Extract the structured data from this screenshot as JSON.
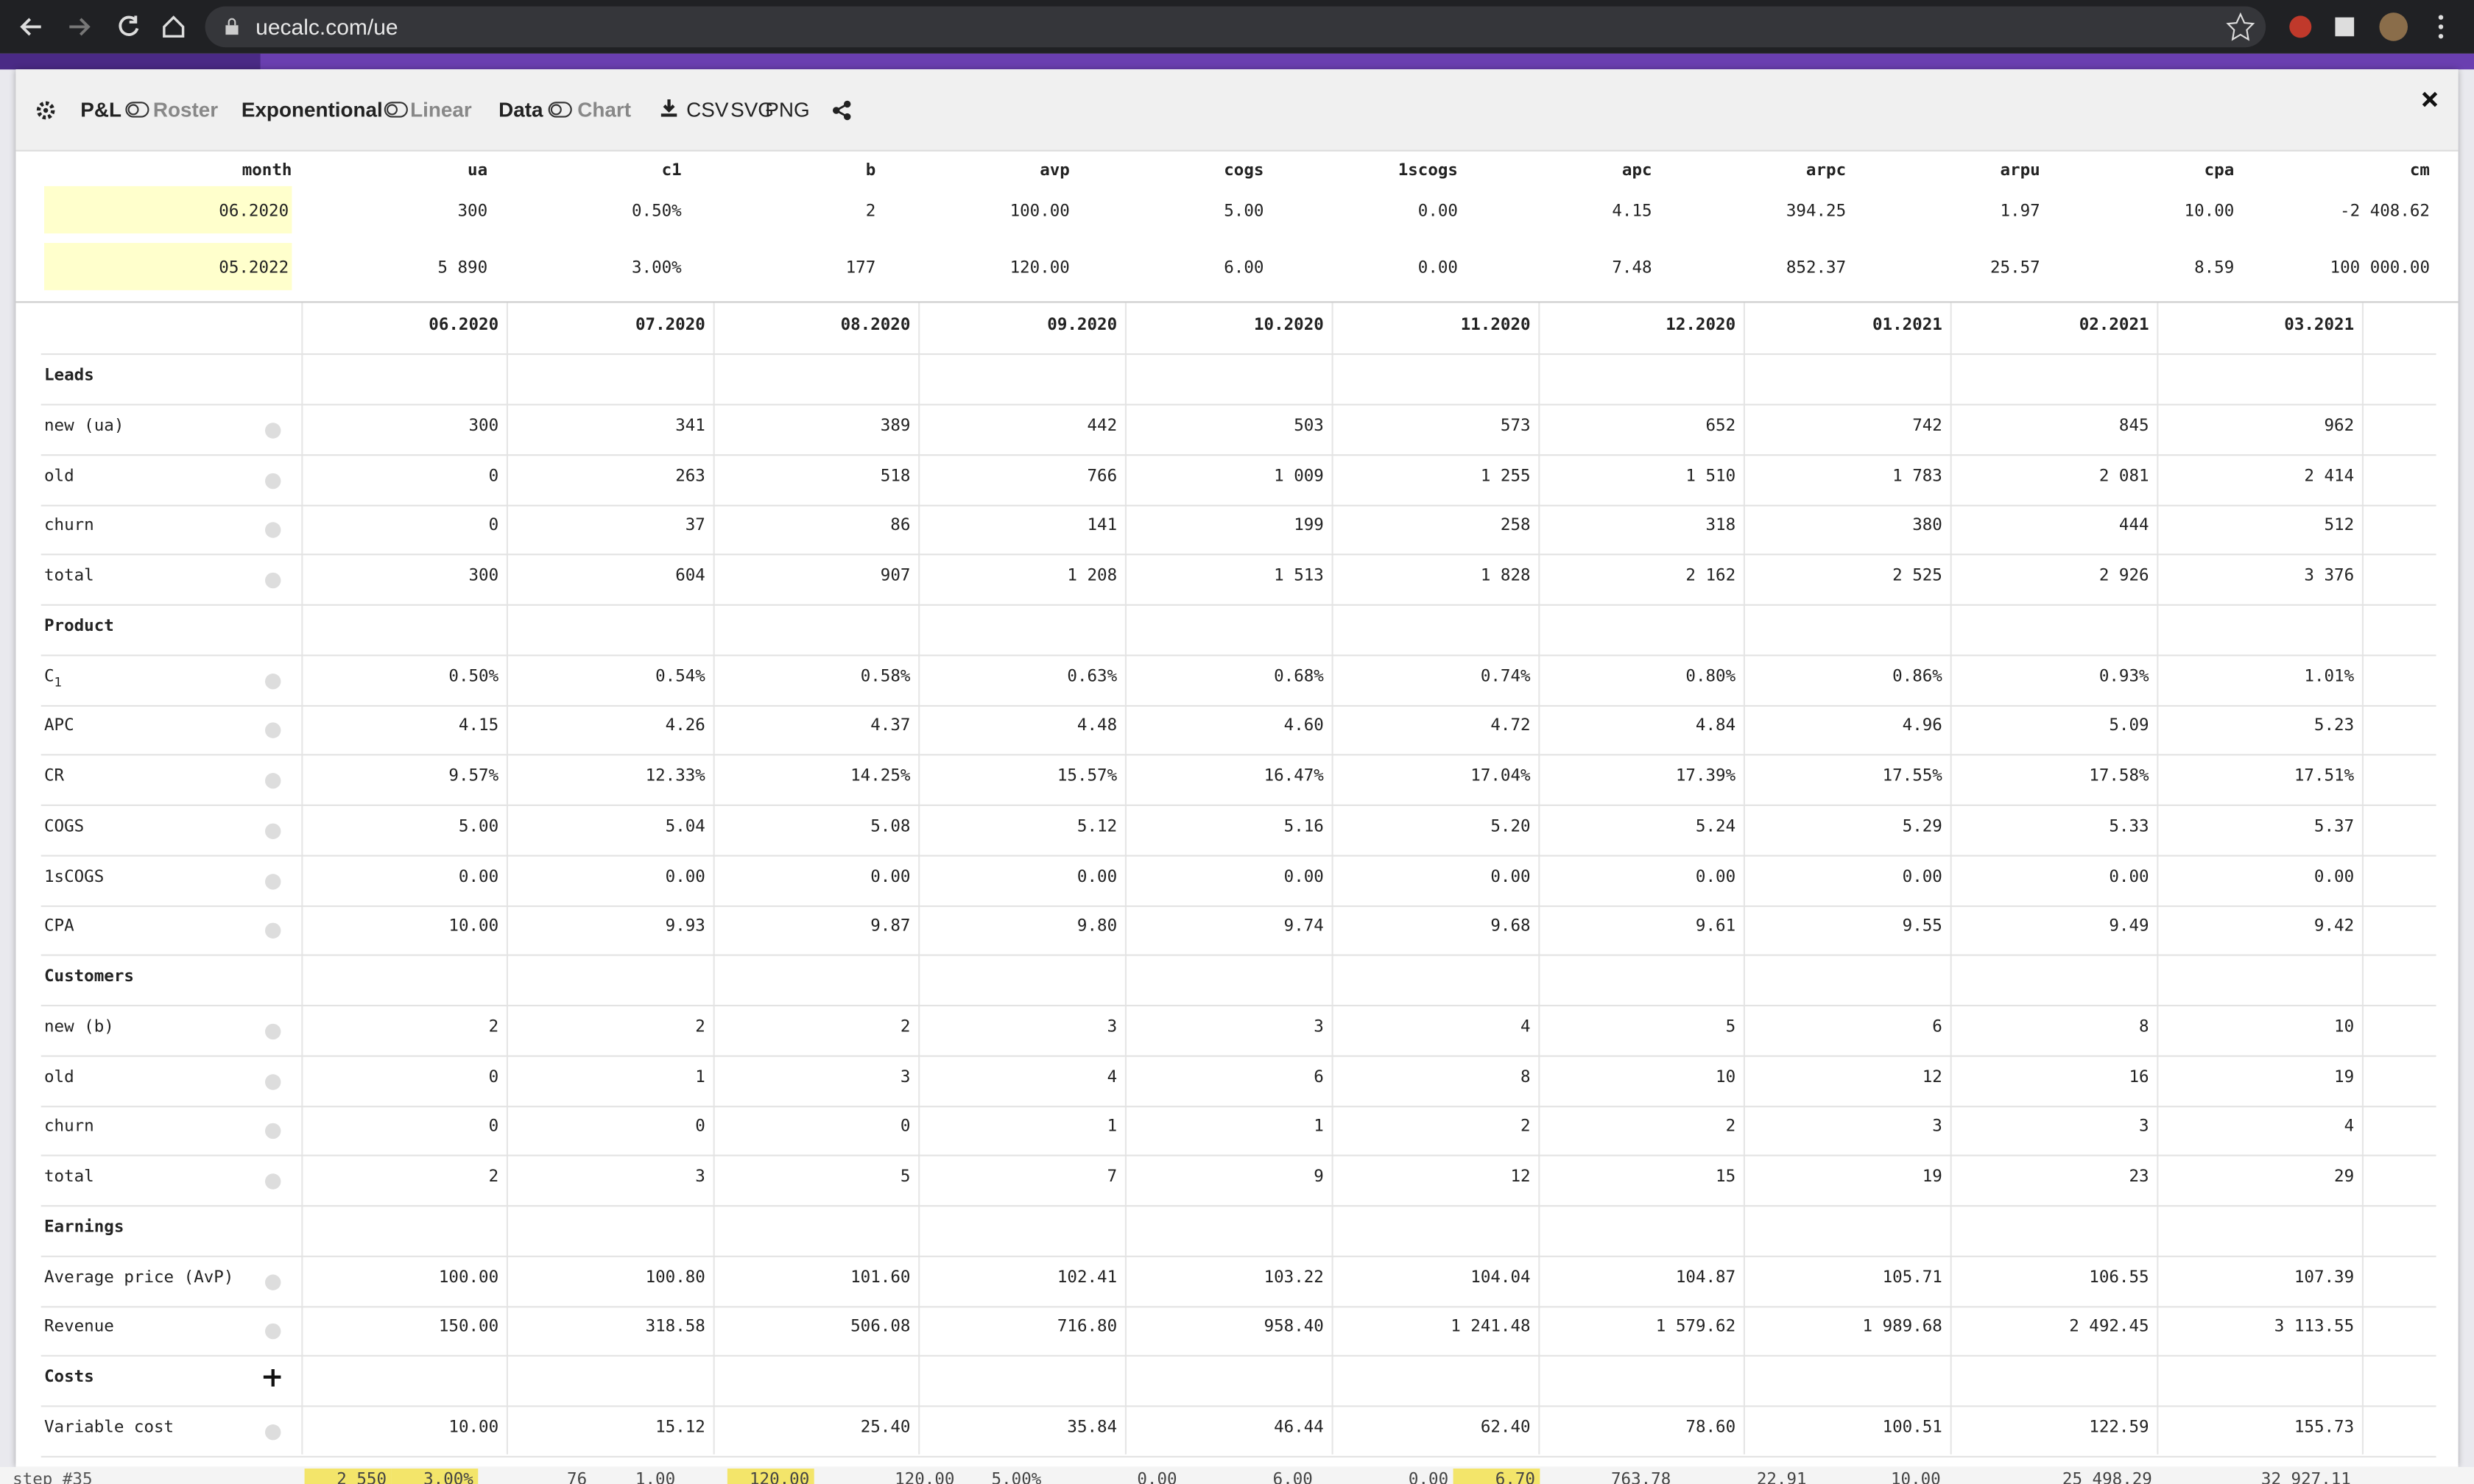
{
  "browser": {
    "url": "uecalc.com/ue"
  },
  "toolbar": {
    "pl": "P&L",
    "roster": "Roster",
    "exponential": "Exponentional",
    "linear": "Linear",
    "data": "Data",
    "chart": "Chart",
    "csv": "CSV",
    "svg": "SVG",
    "png": "PNG"
  },
  "summary": {
    "headers": [
      "month",
      "ua",
      "c1",
      "b",
      "avp",
      "cogs",
      "1scogs",
      "apc",
      "arpc",
      "arpu",
      "cpa",
      "cm"
    ],
    "rows": [
      [
        "06.2020",
        "300",
        "0.50%",
        "2",
        "100.00",
        "5.00",
        "0.00",
        "4.15",
        "394.25",
        "1.97",
        "10.00",
        "-2 408.62"
      ],
      [
        "05.2022",
        "5 890",
        "3.00%",
        "177",
        "120.00",
        "6.00",
        "0.00",
        "7.48",
        "852.37",
        "25.57",
        "8.59",
        "100 000.00"
      ]
    ]
  },
  "table": {
    "months": [
      "06.2020",
      "07.2020",
      "08.2020",
      "09.2020",
      "10.2020",
      "11.2020",
      "12.2020",
      "01.2021",
      "02.2021",
      "03.2021"
    ],
    "sections": [
      {
        "title": "Leads",
        "rows": [
          {
            "label": "new (ua)",
            "values": [
              "300",
              "341",
              "389",
              "442",
              "503",
              "573",
              "652",
              "742",
              "845",
              "962"
            ]
          },
          {
            "label": "old",
            "values": [
              "0",
              "263",
              "518",
              "766",
              "1 009",
              "1 255",
              "1 510",
              "1 783",
              "2 081",
              "2 414"
            ]
          },
          {
            "label": "churn",
            "values": [
              "0",
              "37",
              "86",
              "141",
              "199",
              "258",
              "318",
              "380",
              "444",
              "512"
            ]
          },
          {
            "label": "total",
            "values": [
              "300",
              "604",
              "907",
              "1 208",
              "1 513",
              "1 828",
              "2 162",
              "2 525",
              "2 926",
              "3 376"
            ]
          }
        ]
      },
      {
        "title": "Product",
        "rows": [
          {
            "label": "C",
            "sub": "1",
            "values": [
              "0.50%",
              "0.54%",
              "0.58%",
              "0.63%",
              "0.68%",
              "0.74%",
              "0.80%",
              "0.86%",
              "0.93%",
              "1.01%"
            ]
          },
          {
            "label": "APC",
            "values": [
              "4.15",
              "4.26",
              "4.37",
              "4.48",
              "4.60",
              "4.72",
              "4.84",
              "4.96",
              "5.09",
              "5.23"
            ]
          },
          {
            "label": "CR",
            "values": [
              "9.57%",
              "12.33%",
              "14.25%",
              "15.57%",
              "16.47%",
              "17.04%",
              "17.39%",
              "17.55%",
              "17.58%",
              "17.51%"
            ]
          },
          {
            "label": "COGS",
            "values": [
              "5.00",
              "5.04",
              "5.08",
              "5.12",
              "5.16",
              "5.20",
              "5.24",
              "5.29",
              "5.33",
              "5.37"
            ]
          },
          {
            "label": "1sCOGS",
            "values": [
              "0.00",
              "0.00",
              "0.00",
              "0.00",
              "0.00",
              "0.00",
              "0.00",
              "0.00",
              "0.00",
              "0.00"
            ]
          },
          {
            "label": "CPA",
            "values": [
              "10.00",
              "9.93",
              "9.87",
              "9.80",
              "9.74",
              "9.68",
              "9.61",
              "9.55",
              "9.49",
              "9.42"
            ]
          }
        ]
      },
      {
        "title": "Customers",
        "rows": [
          {
            "label": "new (b)",
            "values": [
              "2",
              "2",
              "2",
              "3",
              "3",
              "4",
              "5",
              "6",
              "8",
              "10"
            ]
          },
          {
            "label": "old",
            "values": [
              "0",
              "1",
              "3",
              "4",
              "6",
              "8",
              "10",
              "12",
              "16",
              "19"
            ]
          },
          {
            "label": "churn",
            "values": [
              "0",
              "0",
              "0",
              "1",
              "1",
              "2",
              "2",
              "3",
              "3",
              "4"
            ]
          },
          {
            "label": "total",
            "values": [
              "2",
              "3",
              "5",
              "7",
              "9",
              "12",
              "15",
              "19",
              "23",
              "29"
            ]
          }
        ]
      },
      {
        "title": "Earnings",
        "rows": [
          {
            "label": "Average price (AvP)",
            "values": [
              "100.00",
              "100.80",
              "101.60",
              "102.41",
              "103.22",
              "104.04",
              "104.87",
              "105.71",
              "106.55",
              "107.39"
            ]
          },
          {
            "label": "Revenue",
            "values": [
              "150.00",
              "318.58",
              "506.08",
              "716.80",
              "958.40",
              "1 241.48",
              "1 579.62",
              "1 989.68",
              "2 492.45",
              "3 113.55"
            ]
          }
        ]
      },
      {
        "title": "Costs",
        "rows": [
          {
            "label": "Variable cost",
            "values": [
              "10.00",
              "15.12",
              "25.40",
              "35.84",
              "46.44",
              "62.40",
              "78.60",
              "100.51",
              "122.59",
              "155.73"
            ]
          }
        ]
      }
    ]
  },
  "footer": {
    "label": "step #35",
    "values": [
      "2 550",
      "3.00%",
      "76",
      "1.00",
      "120.00",
      "120.00",
      "5.00%",
      "0.00",
      "6.00",
      "0.00",
      "6.70",
      "763.78",
      "22.91",
      "10.00",
      "25 498.29",
      "32 927.11"
    ]
  }
}
